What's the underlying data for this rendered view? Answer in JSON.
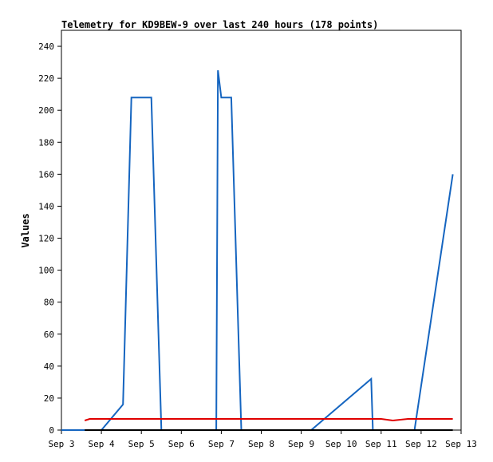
{
  "chart_data": {
    "type": "line",
    "title": "Telemetry for KD9BEW-9 over last 240 hours (178 points)",
    "ylabel": "Values",
    "xlabel": "",
    "ylim": [
      0,
      250
    ],
    "xlim": [
      "Sep 3",
      "Sep 13"
    ],
    "x_ticks": [
      "Sep 3",
      "Sep 4",
      "Sep 5",
      "Sep 6",
      "Sep 7",
      "Sep 8",
      "Sep 9",
      "Sep 10",
      "Sep 11",
      "Sep 12",
      "Sep 13"
    ],
    "y_ticks": [
      0,
      20,
      40,
      60,
      80,
      100,
      120,
      140,
      160,
      180,
      200,
      220,
      240
    ],
    "grid": false,
    "legend": "none",
    "series": [
      {
        "color": "#1565c0",
        "points": [
          [
            "Sep 3 00:00",
            0
          ],
          [
            "Sep 4 00:00",
            0
          ],
          [
            "Sep 4 13:00",
            16
          ],
          [
            "Sep 4 18:00",
            208
          ],
          [
            "Sep 5 06:00",
            208
          ],
          [
            "Sep 5 12:00",
            0
          ],
          [
            "Sep 6 21:00",
            0
          ],
          [
            "Sep 6 22:00",
            225
          ],
          [
            "Sep 7 00:00",
            208
          ],
          [
            "Sep 7 06:00",
            208
          ],
          [
            "Sep 7 12:00",
            0
          ],
          [
            "Sep 9 06:00",
            0
          ],
          [
            "Sep 10 18:00",
            32
          ],
          [
            "Sep 10 19:00",
            0
          ],
          [
            "Sep 11 20:00",
            0
          ],
          [
            "Sep 12 19:00",
            160
          ]
        ]
      },
      {
        "color": "#e00000",
        "points": [
          [
            "Sep 3 14:00",
            6
          ],
          [
            "Sep 3 17:00",
            7
          ],
          [
            "Sep 11 00:00",
            7
          ],
          [
            "Sep 11 07:00",
            6
          ],
          [
            "Sep 11 16:00",
            7
          ],
          [
            "Sep 12 19:00",
            7
          ]
        ]
      },
      {
        "color": "#000000",
        "points": [
          [
            "Sep 3 14:00",
            0
          ],
          [
            "Sep 12 19:00",
            0
          ]
        ]
      }
    ]
  }
}
